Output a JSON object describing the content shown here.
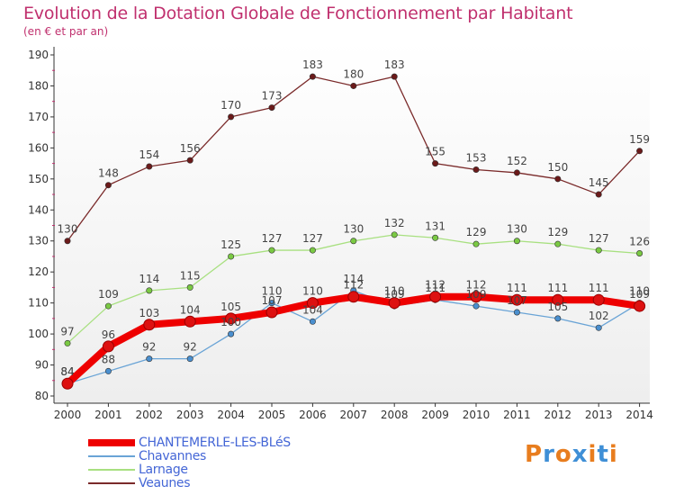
{
  "header": {
    "title": "Evolution de la Dotation Globale de Fonctionnement par Habitant",
    "subtitle": "(en € et par an)"
  },
  "logo": {
    "letters": [
      "P",
      "r",
      "o",
      "x",
      "i",
      "t",
      "i"
    ],
    "colors": [
      "#e87d1e",
      "#3f8fd6",
      "#e87d1e",
      "#3f8fd6",
      "#e87d1e",
      "#3f8fd6",
      "#e87d1e"
    ]
  },
  "chart_data": {
    "type": "line",
    "x": [
      "2000",
      "2001",
      "2002",
      "2003",
      "2004",
      "2005",
      "2006",
      "2007",
      "2008",
      "2009",
      "2010",
      "2011",
      "2012",
      "2013",
      "2014"
    ],
    "y_ticks": [
      80,
      90,
      100,
      110,
      120,
      130,
      140,
      150,
      160,
      170,
      180,
      190
    ],
    "ylim": [
      80,
      190
    ],
    "grid": false,
    "legend_position": "bottom-left",
    "series": [
      {
        "name": "Veaunes",
        "color": "#7a2a2a",
        "point_color": "#6b1a1a",
        "values": [
          130,
          148,
          154,
          156,
          170,
          173,
          183,
          180,
          183,
          155,
          153,
          152,
          150,
          145,
          159
        ],
        "labels": [
          "130",
          "148",
          "154",
          "156",
          "170",
          "173",
          "183",
          "180",
          "183",
          "155",
          "153",
          "152",
          "150",
          "145",
          "159"
        ]
      },
      {
        "name": "Larnage",
        "color": "#a8e080",
        "point_color": "#7ac943",
        "values": [
          97,
          109,
          114,
          115,
          125,
          127,
          127,
          130,
          132,
          131,
          129,
          130,
          129,
          127,
          126
        ],
        "labels": [
          "97",
          "109",
          "114",
          "115",
          "125",
          "127",
          "127",
          "130",
          "132",
          "131",
          "129",
          "130",
          "129",
          "127",
          "126"
        ]
      },
      {
        "name": "Chavannes",
        "color": "#6aa4d6",
        "point_color": "#4a8fcf",
        "values": [
          84,
          88,
          92,
          92,
          100,
          110,
          104,
          114,
          109,
          111,
          109,
          107,
          105,
          102,
          110
        ],
        "labels": [
          "84",
          "88",
          "92",
          "92",
          "100",
          "110",
          "104",
          "114",
          "109",
          "111",
          "109",
          "107",
          "105",
          "102",
          "110"
        ]
      },
      {
        "name": "CHANTEMERLE-LES-BLéS",
        "color": "#ee0000",
        "point_color": "#dd1111",
        "values": [
          84,
          96,
          103,
          104,
          105,
          107,
          110,
          112,
          110,
          112,
          112,
          111,
          111,
          111,
          109
        ],
        "labels": [
          "84",
          "96",
          "103",
          "104",
          "105",
          "107",
          "110",
          "112",
          "110",
          "112",
          "112",
          "111",
          "111",
          "111",
          "109"
        ]
      }
    ],
    "legend": [
      "CHANTEMERLE-LES-BLéS",
      "Chavannes",
      "Larnage",
      "Veaunes"
    ]
  }
}
